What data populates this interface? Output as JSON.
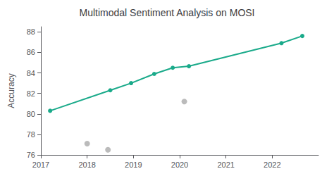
{
  "chart_data": {
    "type": "line",
    "title": "Multimodal Sentiment Analysis on MOSI",
    "ylabel": "Accuracy",
    "xlim": [
      2017,
      2023
    ],
    "ylim": [
      76,
      88.5
    ],
    "xticks": [
      2017,
      2018,
      2019,
      2020,
      2021,
      2022
    ],
    "yticks": [
      76,
      78,
      80,
      82,
      84,
      86,
      88
    ],
    "grid": false,
    "series": [
      {
        "type": "line",
        "color": "#1aaa8a",
        "marker": "circle",
        "x": [
          2017.2,
          2018.5,
          2018.95,
          2019.45,
          2019.85,
          2020.2,
          2022.2,
          2022.65
        ],
        "values": [
          80.3,
          82.3,
          83.0,
          83.9,
          84.5,
          84.65,
          86.9,
          87.6
        ]
      },
      {
        "type": "scatter",
        "color": "#aaaaaa",
        "marker": "circle",
        "x": [
          2018.0,
          2018.45,
          2020.1
        ],
        "values": [
          77.1,
          76.5,
          81.2
        ]
      }
    ]
  }
}
